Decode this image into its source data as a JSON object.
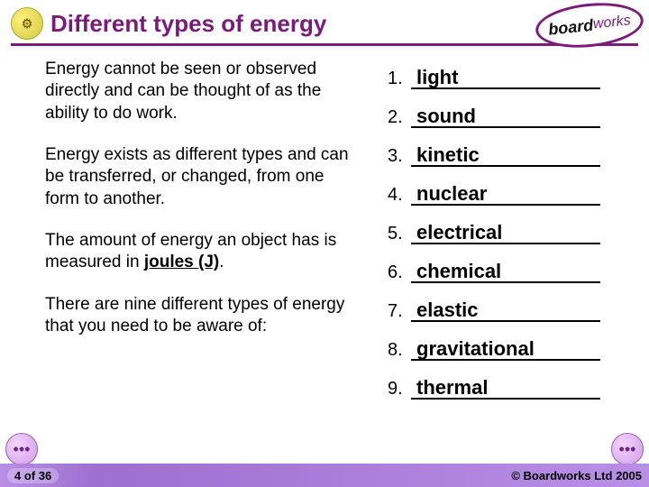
{
  "header": {
    "title": "Different types of energy",
    "logo_text1": "board",
    "logo_text2": "works",
    "title_color": "#7a1a7a"
  },
  "body": {
    "paragraphs": [
      "Energy cannot be seen or observed directly and can be thought of as the ability to do work.",
      "Energy exists as different types and can be transferred, or changed, from one form to another.",
      "The amount of energy an object has is measured in __JOULES__.",
      "There are nine different types of energy that you need to be aware of:"
    ],
    "joules_text": "joules (J)"
  },
  "list": {
    "items": [
      {
        "n": "1.",
        "answer": "light"
      },
      {
        "n": "2.",
        "answer": "sound"
      },
      {
        "n": "3.",
        "answer": "kinetic"
      },
      {
        "n": "4.",
        "answer": "nuclear"
      },
      {
        "n": "5.",
        "answer": "electrical"
      },
      {
        "n": "6.",
        "answer": "chemical"
      },
      {
        "n": "7.",
        "answer": "elastic"
      },
      {
        "n": "8.",
        "answer": "gravitational"
      },
      {
        "n": "9.",
        "answer": "thermal"
      }
    ]
  },
  "footer": {
    "page": "4 of 36",
    "copyright": "© Boardworks Ltd 2005",
    "bar_color": "#b98fe6"
  },
  "nav": {
    "left_glyph": "•••",
    "right_glyph": "•••"
  }
}
